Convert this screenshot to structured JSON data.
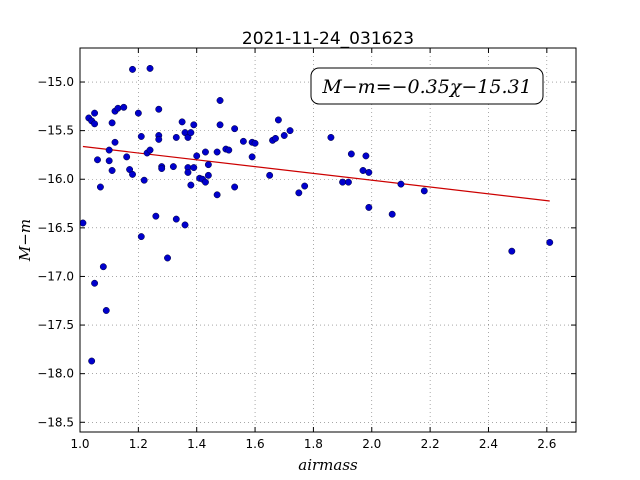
{
  "chart_data": {
    "type": "scatter",
    "title": "2021-11-24_031623",
    "xlabel": "airmass",
    "ylabel": "M−m",
    "annotation": "M−m=−0.35χ−15.31",
    "xlim": [
      1.0,
      2.7
    ],
    "ylim": [
      -18.6,
      -14.65
    ],
    "y_inverted": true,
    "grid": true,
    "x_ticks": [
      1.0,
      1.2,
      1.4,
      1.6,
      1.8,
      2.0,
      2.2,
      2.4,
      2.6
    ],
    "x_tick_labels": [
      "1.0",
      "1.2",
      "1.4",
      "1.6",
      "1.8",
      "2.0",
      "2.2",
      "2.4",
      "2.6"
    ],
    "y_ticks": [
      -15.0,
      -15.5,
      -16.0,
      -16.5,
      -17.0,
      -17.5,
      -18.0,
      -18.5
    ],
    "y_tick_labels": [
      "−15.0",
      "−15.5",
      "−16.0",
      "−16.5",
      "−17.0",
      "−17.5",
      "−18.0",
      "−18.5"
    ],
    "point_color": "#0000cc",
    "fit_color": "#cc0000",
    "fit": {
      "slope": -0.35,
      "intercept": -15.31,
      "x_range": [
        1.01,
        2.61
      ]
    },
    "points": [
      [
        1.01,
        -16.45
      ],
      [
        1.03,
        -15.37
      ],
      [
        1.04,
        -15.4
      ],
      [
        1.05,
        -15.43
      ],
      [
        1.05,
        -15.32
      ],
      [
        1.05,
        -17.07
      ],
      [
        1.04,
        -17.87
      ],
      [
        1.06,
        -15.8
      ],
      [
        1.07,
        -16.08
      ],
      [
        1.08,
        -16.9
      ],
      [
        1.09,
        -17.35
      ],
      [
        1.1,
        -15.7
      ],
      [
        1.1,
        -15.81
      ],
      [
        1.11,
        -15.91
      ],
      [
        1.11,
        -15.42
      ],
      [
        1.12,
        -15.62
      ],
      [
        1.12,
        -15.3
      ],
      [
        1.13,
        -15.27
      ],
      [
        1.15,
        -15.26
      ],
      [
        1.16,
        -15.77
      ],
      [
        1.17,
        -15.9
      ],
      [
        1.18,
        -15.95
      ],
      [
        1.18,
        -14.87
      ],
      [
        1.2,
        -15.32
      ],
      [
        1.21,
        -15.56
      ],
      [
        1.21,
        -16.59
      ],
      [
        1.22,
        -16.01
      ],
      [
        1.23,
        -15.73
      ],
      [
        1.24,
        -15.7
      ],
      [
        1.24,
        -14.86
      ],
      [
        1.26,
        -16.38
      ],
      [
        1.27,
        -15.28
      ],
      [
        1.27,
        -15.55
      ],
      [
        1.27,
        -15.59
      ],
      [
        1.28,
        -15.87
      ],
      [
        1.28,
        -15.89
      ],
      [
        1.3,
        -16.81
      ],
      [
        1.32,
        -15.87
      ],
      [
        1.33,
        -15.57
      ],
      [
        1.33,
        -16.41
      ],
      [
        1.35,
        -15.41
      ],
      [
        1.36,
        -16.47
      ],
      [
        1.36,
        -15.52
      ],
      [
        1.37,
        -15.57
      ],
      [
        1.37,
        -15.88
      ],
      [
        1.37,
        -15.93
      ],
      [
        1.38,
        -15.52
      ],
      [
        1.38,
        -16.06
      ],
      [
        1.39,
        -15.44
      ],
      [
        1.39,
        -15.88
      ],
      [
        1.4,
        -15.76
      ],
      [
        1.41,
        -15.99
      ],
      [
        1.42,
        -16.0
      ],
      [
        1.43,
        -16.03
      ],
      [
        1.43,
        -15.72
      ],
      [
        1.44,
        -15.85
      ],
      [
        1.44,
        -15.96
      ],
      [
        1.47,
        -15.72
      ],
      [
        1.47,
        -16.16
      ],
      [
        1.48,
        -15.19
      ],
      [
        1.48,
        -15.44
      ],
      [
        1.5,
        -15.69
      ],
      [
        1.51,
        -15.7
      ],
      [
        1.53,
        -16.08
      ],
      [
        1.53,
        -15.48
      ],
      [
        1.56,
        -15.61
      ],
      [
        1.59,
        -15.62
      ],
      [
        1.59,
        -15.77
      ],
      [
        1.6,
        -15.63
      ],
      [
        1.65,
        -15.96
      ],
      [
        1.66,
        -15.6
      ],
      [
        1.67,
        -15.58
      ],
      [
        1.68,
        -15.39
      ],
      [
        1.7,
        -15.55
      ],
      [
        1.72,
        -15.5
      ],
      [
        1.75,
        -16.14
      ],
      [
        1.77,
        -16.07
      ],
      [
        1.86,
        -15.57
      ],
      [
        1.9,
        -16.03
      ],
      [
        1.92,
        -16.03
      ],
      [
        1.93,
        -15.74
      ],
      [
        1.97,
        -15.91
      ],
      [
        1.98,
        -15.76
      ],
      [
        1.99,
        -15.93
      ],
      [
        1.99,
        -16.29
      ],
      [
        2.07,
        -16.36
      ],
      [
        2.1,
        -16.05
      ],
      [
        2.18,
        -16.12
      ],
      [
        2.48,
        -16.74
      ],
      [
        2.61,
        -16.65
      ]
    ]
  }
}
